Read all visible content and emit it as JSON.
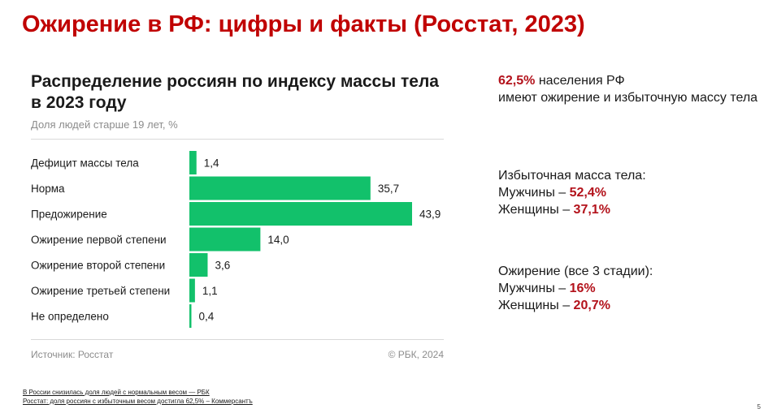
{
  "slide": {
    "title": "Ожирение в РФ: цифры и факты (Росстат, 2023)",
    "page_number": "5"
  },
  "chart_data": {
    "type": "bar",
    "orientation": "horizontal",
    "title": "Распределение россиян по индексу массы тела в 2023 году",
    "subtitle": "Доля людей старше 19 лет, %",
    "categories": [
      "Дефицит массы тела",
      "Норма",
      "Предожирение",
      "Ожирение первой степени",
      "Ожирение второй степени",
      "Ожирение третьей степени",
      "Не определено"
    ],
    "values": [
      1.4,
      35.7,
      43.9,
      14.0,
      3.6,
      1.1,
      0.4
    ],
    "value_labels": [
      "1,4",
      "35,7",
      "43,9",
      "14,0",
      "3,6",
      "1,1",
      "0,4"
    ],
    "xlim": [
      0,
      43.9
    ],
    "bar_color": "#12c16b",
    "grid": false,
    "legend": "none",
    "source": "Источник: Росстат",
    "copyright": "© РБК, 2024"
  },
  "facts": {
    "f1_value": "62,5%",
    "f1_line1": "населения РФ",
    "f1_line2": "имеют ожирение и избыточную массу тела",
    "f2_heading": "Избыточная масса тела:",
    "f2_men_label": "Мужчины –",
    "f2_men_value": "52,4%",
    "f2_women_label": "Женщины –",
    "f2_women_value": "37,1%",
    "f3_heading": "Ожирение (все 3 стадии):",
    "f3_men_label": "Мужчины –",
    "f3_men_value": "16%",
    "f3_women_label": "Женщины –",
    "f3_women_value": "20,7%"
  },
  "links": [
    "В России снизилась доля людей с нормальным весом — РБК",
    "Росстат: доля россиян с избыточным весом достигла 62,5% – Коммерсантъ"
  ],
  "colors": {
    "title_red": "#c00000",
    "accent_red": "#b3121b"
  }
}
